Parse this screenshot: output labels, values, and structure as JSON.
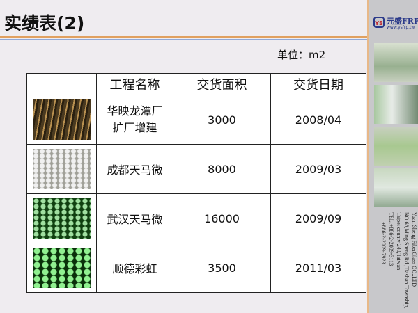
{
  "title": "实绩表(2)",
  "unit_label": "单位：m2",
  "table": {
    "headers": [
      "",
      "工程名称",
      "交货面积",
      "交货日期"
    ],
    "rows": [
      {
        "name": "华映龙潭厂扩厂增建",
        "area": "3000",
        "date": "2008/04"
      },
      {
        "name": "成都天马微",
        "area": "8000",
        "date": "2009/03"
      },
      {
        "name": "武汉天马微",
        "area": "16000",
        "date": "2009/09"
      },
      {
        "name": "顺德彩虹",
        "area": "3500",
        "date": "2011/03"
      }
    ]
  },
  "sidebar": {
    "logo": {
      "mark": "YS",
      "name": "元盛FRP",
      "url": "www.ysfrp.tw"
    },
    "address": [
      "Yuan Sheng FiberGlass CO.,LTD",
      "NO.68,Ming Sheng Rd.,Tiashan Township,",
      "Taipei county 240,Taiwan",
      "TEL:+886-2-2009-3113",
      "+886-2-2009-7923"
    ]
  },
  "colors": {
    "accent_orange": "#e0a060",
    "accent_blue": "#8fa8d8",
    "brand_blue": "#2b3a8a"
  }
}
